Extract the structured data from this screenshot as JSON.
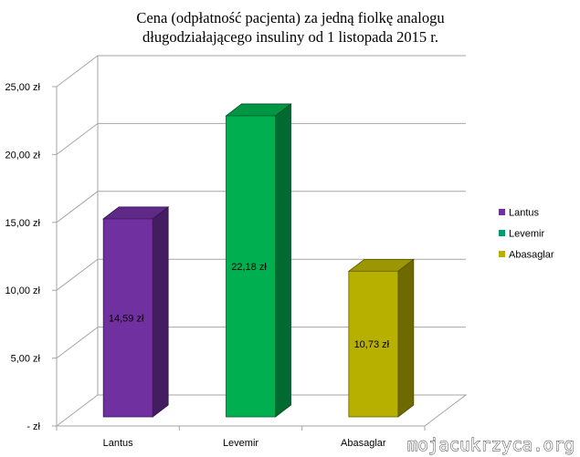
{
  "chart_data": {
    "type": "bar",
    "title_lines": [
      "Cena (odpłatność pacjenta) za jedną fiolkę analogu",
      "długodziałającego insuliny od 1 listopada 2015 r."
    ],
    "categories": [
      "Lantus",
      "Levemir",
      "Abasaglar"
    ],
    "values": [
      14.59,
      22.18,
      10.73
    ],
    "data_labels": [
      "14,59 zł",
      "22,18 zł",
      "10,73 zł"
    ],
    "ylim": [
      0,
      25
    ],
    "y_ticks": [
      {
        "value": 0,
        "label": "-   zł"
      },
      {
        "value": 5,
        "label": "5,00 zł"
      },
      {
        "value": 10,
        "label": "10,00 zł"
      },
      {
        "value": 15,
        "label": "15,00 zł"
      },
      {
        "value": 20,
        "label": "20,00 zł"
      },
      {
        "value": 25,
        "label": "25,00 zł"
      }
    ],
    "colors": [
      "#7030a0",
      "#00b050",
      "#b8b000"
    ],
    "legend": {
      "placement": "right",
      "entries": [
        "Lantus",
        "Levemir",
        "Abasaglar"
      ],
      "colors": [
        "#7030a0",
        "#009a70",
        "#b8b000"
      ]
    },
    "grid": true,
    "three_d": true
  },
  "watermark": {
    "text": "mojacukrzyca.org"
  }
}
